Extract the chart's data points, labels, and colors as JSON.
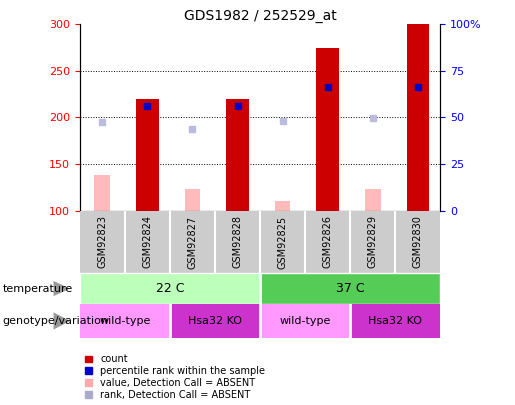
{
  "title": "GDS1982 / 252529_at",
  "samples": [
    "GSM92823",
    "GSM92824",
    "GSM92827",
    "GSM92828",
    "GSM92825",
    "GSM92826",
    "GSM92829",
    "GSM92830"
  ],
  "count_values": [
    null,
    220,
    null,
    220,
    null,
    275,
    null,
    300
  ],
  "absent_value_bars": [
    138,
    null,
    123,
    null,
    110,
    null,
    123,
    null
  ],
  "percentile_rank_present": [
    null,
    212,
    null,
    212,
    null,
    233,
    null,
    233
  ],
  "percentile_rank_absent": [
    195,
    null,
    188,
    null,
    196,
    null,
    199,
    null
  ],
  "ylim_left": [
    100,
    300
  ],
  "ylim_right": [
    0,
    100
  ],
  "left_yticks": [
    100,
    150,
    200,
    250,
    300
  ],
  "right_yticks": [
    0,
    25,
    50,
    75,
    100
  ],
  "right_yticklabels": [
    "0",
    "25",
    "50",
    "75",
    "100%"
  ],
  "temperature_groups": [
    {
      "label": "22 C",
      "start": 0,
      "end": 4,
      "color": "#bbffbb"
    },
    {
      "label": "37 C",
      "start": 4,
      "end": 8,
      "color": "#55cc55"
    }
  ],
  "genotype_groups": [
    {
      "label": "wild-type",
      "start": 0,
      "end": 2,
      "color": "#ff99ff"
    },
    {
      "label": "Hsa32 KO",
      "start": 2,
      "end": 4,
      "color": "#cc33cc"
    },
    {
      "label": "wild-type",
      "start": 4,
      "end": 6,
      "color": "#ff99ff"
    },
    {
      "label": "Hsa32 KO",
      "start": 6,
      "end": 8,
      "color": "#cc33cc"
    }
  ],
  "legend_labels": [
    "count",
    "percentile rank within the sample",
    "value, Detection Call = ABSENT",
    "rank, Detection Call = ABSENT"
  ],
  "legend_colors": [
    "#cc0000",
    "#0000cc",
    "#ffaaaa",
    "#aaaacc"
  ],
  "annot_temperature": "temperature",
  "annot_genotype": "genotype/variation",
  "bar_width": 0.5,
  "absent_bar_width": 0.35,
  "absent_color": "#ffbbbb",
  "absent_rank_color": "#bbbbdd",
  "present_color": "#cc0000",
  "present_rank_color": "#0000cc",
  "sample_bg_color": "#cccccc",
  "title_fontsize": 10,
  "tick_fontsize": 8,
  "label_fontsize": 8,
  "sample_fontsize": 7
}
